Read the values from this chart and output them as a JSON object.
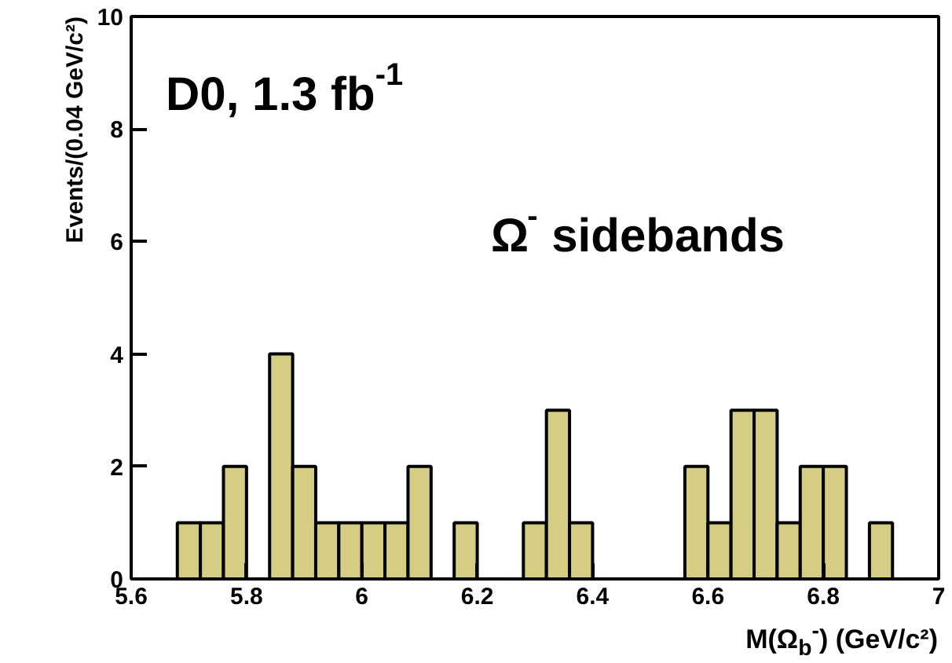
{
  "chart_data": {
    "type": "histogram",
    "xlabel": "M(Ω$_{b}$$^{-}$) (GeV/c²)",
    "ylabel": "Events/(0.04 GeV/c²)",
    "annotations": [
      "D0, 1.3 fb$^{-1}$",
      "Ω$^{-}$ sidebands"
    ],
    "bins": [
      5.6,
      5.64,
      5.68,
      5.72,
      5.76,
      5.8,
      5.84,
      5.88,
      5.92,
      5.96,
      6.0,
      6.04,
      6.08,
      6.12,
      6.16,
      6.2,
      6.24,
      6.28,
      6.32,
      6.36,
      6.4,
      6.44,
      6.48,
      6.52,
      6.56,
      6.6,
      6.64,
      6.68,
      6.72,
      6.76,
      6.8,
      6.84,
      6.88,
      6.92,
      6.96,
      7.0
    ],
    "values": [
      0,
      0,
      1,
      1,
      2,
      0,
      4,
      2,
      1,
      1,
      1,
      1,
      2,
      0,
      1,
      0,
      0,
      1,
      3,
      1,
      0,
      0,
      0,
      0,
      2,
      1,
      3,
      3,
      1,
      2,
      2,
      0,
      1,
      0,
      0
    ],
    "color": "#d5cd84",
    "xlim": [
      5.6,
      7.0
    ],
    "ylim": [
      0,
      10
    ],
    "xticks": [
      5.6,
      5.8,
      6,
      6.2,
      6.4,
      6.6,
      6.8,
      7
    ],
    "yticks": [
      0,
      2,
      4,
      6,
      8,
      10
    ],
    "grid": false
  }
}
